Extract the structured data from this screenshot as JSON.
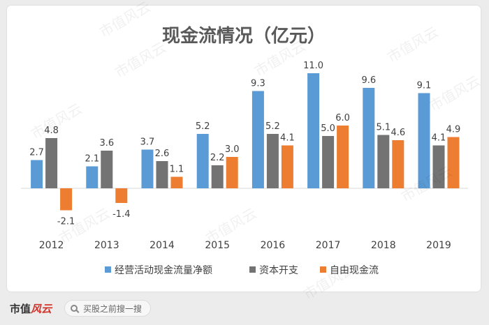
{
  "chart_data": {
    "type": "bar",
    "title": "现金流情况（亿元）",
    "categories": [
      "2012",
      "2013",
      "2014",
      "2015",
      "2016",
      "2017",
      "2018",
      "2019"
    ],
    "series": [
      {
        "name": "经营活动现金流量净额",
        "color": "#5b9bd5",
        "values": [
          2.7,
          2.1,
          3.7,
          5.2,
          9.3,
          11.0,
          9.6,
          9.1
        ]
      },
      {
        "name": "资本开支",
        "color": "#737373",
        "values": [
          4.8,
          3.6,
          2.6,
          2.2,
          5.2,
          5.0,
          5.1,
          4.1
        ]
      },
      {
        "name": "自由现金流",
        "color": "#ed7d31",
        "values": [
          -2.1,
          -1.4,
          1.1,
          3.0,
          4.1,
          6.0,
          4.6,
          4.9
        ]
      }
    ],
    "value_labels": [
      [
        "2.7",
        "2.1",
        "3.7",
        "5.2",
        "9.3",
        "11.0",
        "9.6",
        "9.1"
      ],
      [
        "4.8",
        "3.6",
        "2.6",
        "2.2",
        "5.2",
        "5.0",
        "5.1",
        "4.1"
      ],
      [
        "-2.1",
        "-1.4",
        "1.1",
        "3.0",
        "4.1",
        "6.0",
        "4.6",
        "4.9"
      ]
    ],
    "ylim": [
      -2.1,
      11.0
    ],
    "grid": false,
    "legend_position": "bottom"
  },
  "watermark": "市值风云",
  "footer": {
    "logo_text_a": "市值",
    "logo_text_b": "风云",
    "search_placeholder": "买股之前搜一搜",
    "search_icon": "search-icon"
  }
}
